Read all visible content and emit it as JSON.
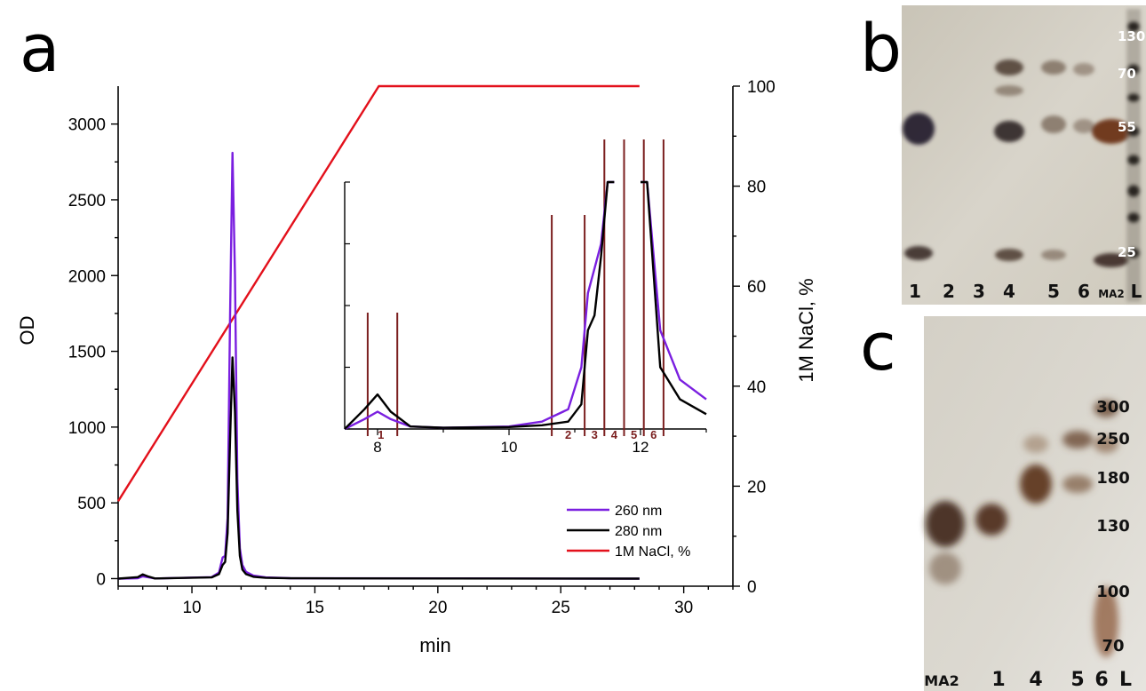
{
  "panels": {
    "a": "a",
    "b": "b",
    "c": "c"
  },
  "chart_data": {
    "type": "line",
    "xlabel": "min",
    "ylabel": "OD",
    "y2label": "1M NaCl, %",
    "xlim": [
      7,
      32
    ],
    "ylim": [
      -50,
      3250
    ],
    "y2lim": [
      0,
      100
    ],
    "xticks": [
      10,
      15,
      20,
      25,
      30
    ],
    "yticks": [
      0,
      500,
      1000,
      1500,
      2000,
      2500,
      3000
    ],
    "y2ticks": [
      0,
      20,
      40,
      60,
      80,
      100
    ],
    "legend_position": "bottom-right",
    "series": [
      {
        "name": "260 nm",
        "color": "#7a1fe0",
        "axis": "left",
        "x": [
          7.0,
          7.8,
          8.0,
          8.2,
          8.5,
          10.8,
          11.1,
          11.25,
          11.35,
          11.45,
          11.55,
          11.65,
          11.75,
          11.85,
          11.95,
          12.05,
          12.2,
          12.5,
          13.0,
          14.0,
          28.2
        ],
        "y": [
          0,
          3,
          15,
          10,
          1,
          10,
          40,
          140,
          150,
          400,
          1700,
          2810,
          2000,
          650,
          200,
          90,
          45,
          20,
          8,
          3,
          0
        ]
      },
      {
        "name": "280 nm",
        "color": "#000000",
        "axis": "left",
        "x": [
          7.0,
          7.8,
          8.0,
          8.2,
          8.5,
          10.8,
          11.1,
          11.25,
          11.35,
          11.45,
          11.55,
          11.65,
          11.75,
          11.85,
          11.95,
          12.05,
          12.2,
          12.5,
          13.0,
          14.0,
          28.2
        ],
        "y": [
          0,
          10,
          28,
          15,
          1,
          8,
          30,
          90,
          110,
          300,
          900,
          1460,
          1100,
          450,
          150,
          60,
          30,
          12,
          5,
          2,
          0
        ]
      },
      {
        "name": "1M NaCl, %",
        "color": "#e3101b",
        "axis": "right",
        "x": [
          7.0,
          17.6,
          28.2
        ],
        "y": [
          17,
          100,
          100
        ]
      }
    ],
    "inset": {
      "xlim": [
        7.5,
        13.0
      ],
      "xticks": [
        8,
        10,
        12
      ],
      "fraction_lines_x": [
        7.85,
        8.3,
        10.65,
        11.15,
        11.45,
        11.75,
        12.05,
        12.35
      ],
      "fraction_labels": [
        {
          "label": "1",
          "x": 8.05
        },
        {
          "label": "2",
          "x": 10.9
        },
        {
          "label": "3",
          "x": 11.3
        },
        {
          "label": "4",
          "x": 11.6
        },
        {
          "label": "5",
          "x": 11.9
        },
        {
          "label": "6",
          "x": 12.2
        }
      ],
      "series": [
        {
          "name": "260 nm",
          "color": "#7a1fe0",
          "x": [
            7.5,
            7.8,
            8.0,
            8.2,
            8.5,
            9.0,
            10.0,
            10.5,
            10.9,
            11.1,
            11.2,
            11.3,
            11.4,
            11.5,
            11.6,
            12.0,
            12.1,
            12.3,
            12.6,
            13.0
          ],
          "y": [
            0,
            4,
            7,
            4,
            1,
            0.5,
            1,
            3,
            8,
            25,
            55,
            65,
            75,
            100,
            100,
            100,
            100,
            40,
            20,
            12
          ]
        },
        {
          "name": "280 nm",
          "color": "#000000",
          "x": [
            7.5,
            7.8,
            8.0,
            8.2,
            8.5,
            9.0,
            10.0,
            10.5,
            10.9,
            11.1,
            11.2,
            11.3,
            11.4,
            11.5,
            11.6,
            12.0,
            12.1,
            12.3,
            12.6,
            13.0
          ],
          "y": [
            0,
            8,
            14,
            7,
            1,
            0.5,
            0.8,
            1.5,
            3,
            10,
            40,
            46,
            70,
            100,
            100,
            100,
            100,
            25,
            12,
            6
          ]
        }
      ]
    }
  },
  "gel_b": {
    "lane_labels": [
      "1",
      "2",
      "3",
      "4",
      "5",
      "6",
      "MA2",
      "L"
    ],
    "mw_labels": [
      "130",
      "70",
      "55",
      "25"
    ]
  },
  "gel_c": {
    "lane_labels": [
      "MA2",
      "1",
      "4",
      "5",
      "6",
      "L"
    ],
    "mw_labels": [
      "300",
      "250",
      "180",
      "130",
      "100",
      "70"
    ]
  }
}
